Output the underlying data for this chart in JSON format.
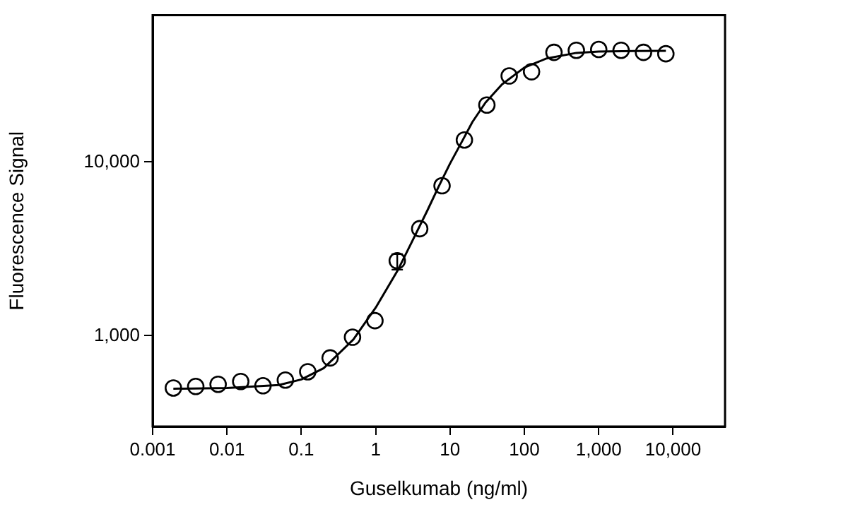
{
  "chart_data": {
    "type": "scatter",
    "xlabel": "Guselkumab (ng/ml)",
    "ylabel": "Fluorescence Signal",
    "log": "xy",
    "grid": false,
    "legend": false,
    "marker": "circle",
    "xlim": [
      0.001,
      50000
    ],
    "xticks": [
      {
        "value": 0.001,
        "label": "0.001"
      },
      {
        "value": 0.01,
        "label": "0.01"
      },
      {
        "value": 0.1,
        "label": "0.1"
      },
      {
        "value": 1,
        "label": "1"
      },
      {
        "value": 10,
        "label": "10"
      },
      {
        "value": 100,
        "label": "100"
      },
      {
        "value": 1000,
        "label": "1,000"
      },
      {
        "value": 10000,
        "label": "10,000"
      }
    ],
    "ylim": [
      300,
      70000
    ],
    "yticks": [
      {
        "value": 1000,
        "label": "1,000"
      },
      {
        "value": 10000,
        "label": "10,000"
      }
    ],
    "series": [
      {
        "color": "#000000",
        "x": [
          0.0019,
          0.0038,
          0.0076,
          0.0153,
          0.0305,
          0.061,
          0.122,
          0.244,
          0.488,
          0.977,
          1.95,
          3.91,
          7.81,
          15.6,
          31.3,
          62.5,
          125,
          250,
          500,
          1000,
          2000,
          4000,
          8000
        ],
        "values": [
          500,
          510,
          525,
          545,
          515,
          555,
          620,
          745,
          980,
          1220,
          2700,
          4130,
          7300,
          13400,
          21300,
          31300,
          33100,
          42800,
          44000,
          44500,
          44000,
          42800,
          42000
        ],
        "errors": [
          null,
          null,
          null,
          null,
          null,
          null,
          null,
          null,
          null,
          null,
          [
            2400,
            2950
          ],
          null,
          null,
          null,
          null,
          null,
          null,
          null,
          null,
          null,
          null,
          null,
          null
        ]
      },
      {
        "type": "line",
        "color": "#000000",
        "marker": "none",
        "x": [
          0.0019,
          0.01,
          0.05,
          0.1,
          0.2,
          0.5,
          1,
          2,
          3,
          5,
          7,
          10,
          15,
          20,
          30,
          50,
          100,
          200,
          500,
          1000,
          3000,
          8000
        ],
        "values": [
          495,
          500,
          520,
          560,
          650,
          950,
          1450,
          2400,
          3400,
          5300,
          7200,
          9800,
          13500,
          17000,
          22000,
          28000,
          35000,
          39500,
          42500,
          43300,
          43600,
          43700
        ]
      }
    ]
  }
}
